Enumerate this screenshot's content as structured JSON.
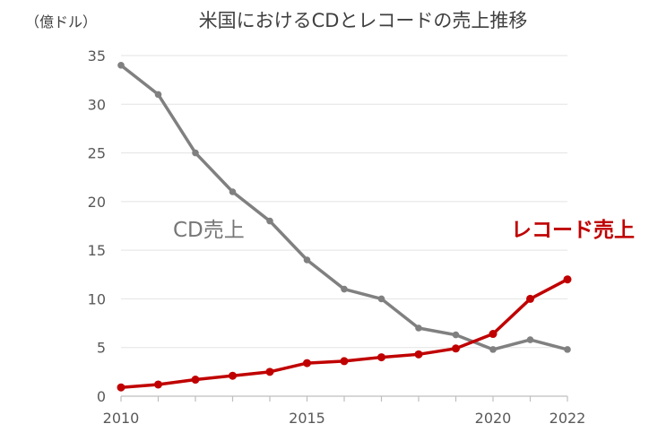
{
  "chart_data": {
    "type": "line",
    "title": "米国におけるCDとレコードの売上推移",
    "ylabel": "（億ドル）",
    "xlabel": "",
    "ylim": [
      0,
      35
    ],
    "yticks": [
      0,
      5,
      10,
      15,
      20,
      25,
      30,
      35
    ],
    "xlim": [
      2010,
      2022
    ],
    "xtick_labels": [
      "2010",
      "2015",
      "2020",
      "2022"
    ],
    "xticks": [
      2010,
      2015,
      2020,
      2022
    ],
    "x": [
      2010,
      2011,
      2012,
      2013,
      2014,
      2015,
      2016,
      2017,
      2018,
      2019,
      2020,
      2021,
      2022
    ],
    "grid": true,
    "legend": "inline",
    "series": [
      {
        "name": "CD売上",
        "color": "#808080",
        "values": [
          34,
          31,
          25,
          21,
          18,
          14,
          11,
          10,
          7,
          6.3,
          4.8,
          5.8,
          4.8
        ]
      },
      {
        "name": "レコード売上",
        "color": "#c00000",
        "values": [
          0.9,
          1.2,
          1.7,
          2.1,
          2.5,
          3.4,
          3.6,
          4.0,
          4.3,
          4.9,
          6.4,
          10.0,
          12.0
        ]
      }
    ]
  }
}
